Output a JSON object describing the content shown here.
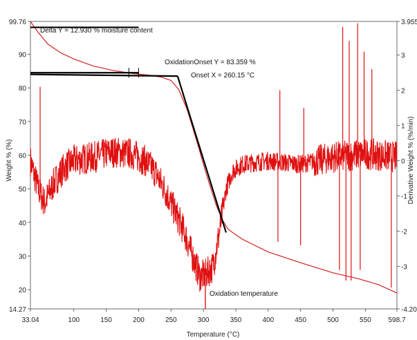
{
  "chart_data": {
    "type": "line",
    "xlabel": "Temperature (°C)",
    "ylabel_left": "Weight % (%)",
    "ylabel_right": "Derivative Weight % (%/min)",
    "xlim": [
      33.04,
      598.7
    ],
    "ylim_left": [
      14.27,
      99.76
    ],
    "ylim_right": [
      -4.205,
      3.955
    ],
    "x_ticks": [
      {
        "value": 33.04,
        "label": "33.04"
      },
      {
        "value": 100,
        "label": "100"
      },
      {
        "value": 150,
        "label": "150"
      },
      {
        "value": 200,
        "label": "200"
      },
      {
        "value": 250,
        "label": "250"
      },
      {
        "value": 300,
        "label": "300"
      },
      {
        "value": 350,
        "label": "350"
      },
      {
        "value": 400,
        "label": "400"
      },
      {
        "value": 450,
        "label": "450"
      },
      {
        "value": 500,
        "label": "500"
      },
      {
        "value": 550,
        "label": "550"
      },
      {
        "value": 598.7,
        "label": "598.7"
      }
    ],
    "y_left_ticks": [
      {
        "value": 99.76,
        "label": "99.76"
      },
      {
        "value": 90,
        "label": "90"
      },
      {
        "value": 80,
        "label": "80"
      },
      {
        "value": 70,
        "label": "70"
      },
      {
        "value": 60,
        "label": "60"
      },
      {
        "value": 50,
        "label": "50"
      },
      {
        "value": 40,
        "label": "40"
      },
      {
        "value": 30,
        "label": "30"
      },
      {
        "value": 20,
        "label": "20"
      },
      {
        "value": 14.27,
        "label": "14.27"
      }
    ],
    "y_right_ticks": [
      {
        "value": 3.955,
        "label": "3.955"
      },
      {
        "value": 3,
        "label": "3"
      },
      {
        "value": 2,
        "label": "2"
      },
      {
        "value": 1,
        "label": "1"
      },
      {
        "value": 0,
        "label": "0"
      },
      {
        "value": -1,
        "label": "-1"
      },
      {
        "value": -2,
        "label": "-2"
      },
      {
        "value": -3,
        "label": "-3"
      },
      {
        "value": -4.205,
        "label": "-4.205"
      }
    ],
    "weight_curve": {
      "color": "#d42020",
      "x": [
        33.04,
        45,
        60,
        80,
        100,
        130,
        160,
        190,
        215,
        235,
        250,
        262,
        275,
        290,
        305,
        320,
        330,
        338,
        345,
        360,
        400,
        450,
        500,
        540,
        570,
        598.7
      ],
      "y": [
        99.76,
        96.5,
        93.0,
        90.4,
        88.6,
        86.5,
        85.2,
        84.3,
        83.8,
        83.2,
        82.2,
        79.5,
        73.5,
        64.0,
        54.0,
        45.0,
        40.5,
        38.0,
        37.0,
        35.0,
        31.2,
        28.0,
        25.0,
        23.2,
        21.5,
        19.0
      ]
    },
    "derivative_curve": {
      "color": "#e01010",
      "x": [
        33.04,
        45,
        55,
        70,
        85,
        100,
        130,
        160,
        190,
        210,
        225,
        240,
        255,
        270,
        285,
        295,
        305,
        315,
        325,
        335,
        345,
        360,
        400,
        450,
        500,
        550,
        598.7
      ],
      "y": [
        0.0,
        -0.8,
        -1.2,
        -0.6,
        -0.2,
        0.0,
        0.1,
        0.25,
        0.2,
        0.0,
        -0.3,
        -0.8,
        -1.4,
        -2.0,
        -2.8,
        -3.3,
        -3.2,
        -3.0,
        -2.0,
        -0.8,
        -0.3,
        -0.1,
        0.0,
        -0.1,
        0.1,
        0.2,
        0.1
      ],
      "spikes": [
        {
          "x": 48,
          "y": 2.1
        },
        {
          "x": 415,
          "y": -2.3
        },
        {
          "x": 418,
          "y": 2.0
        },
        {
          "x": 450,
          "y": -2.4
        },
        {
          "x": 455,
          "y": 1.5
        },
        {
          "x": 510,
          "y": -3.1
        },
        {
          "x": 515,
          "y": 3.8
        },
        {
          "x": 520,
          "y": -3.4
        },
        {
          "x": 525,
          "y": 3.4
        },
        {
          "x": 528,
          "y": -3.4
        },
        {
          "x": 538,
          "y": 3.9
        },
        {
          "x": 542,
          "y": -3.1
        },
        {
          "x": 548,
          "y": 3.1
        },
        {
          "x": 560,
          "y": 2.6
        },
        {
          "x": 590,
          "y": -3.6
        }
      ],
      "noise_amplitude": 0.45
    },
    "lines": [
      {
        "name": "delta-upper-baseline",
        "x": [
          33.04,
          200
        ],
        "y": [
          98.0,
          98.0
        ]
      },
      {
        "name": "delta-lower-baseline",
        "x": [
          33.04,
          200
        ],
        "y": [
          84.5,
          84.5
        ]
      },
      {
        "name": "onset-baseline",
        "x": [
          33.04,
          260.15
        ],
        "y": [
          84.0,
          83.5
        ]
      },
      {
        "name": "onset-tangent",
        "x": [
          260.15,
          335
        ],
        "y": [
          83.5,
          37.0
        ]
      }
    ],
    "markers": [
      {
        "name": "delta-marker-1",
        "x": 185,
        "y": 84.5
      },
      {
        "name": "delta-marker-2",
        "x": 200,
        "y": 84.5
      }
    ],
    "annotations": {
      "delta": "Delta Y = 12.930 % moisture content",
      "onset_y": "OxidationOnset Y = 83.359 %",
      "onset_x": "Onset X = 260.15 °C",
      "oxidation_temperature": "Oxidation temperature"
    },
    "oxidation_temperature_x": 303
  }
}
